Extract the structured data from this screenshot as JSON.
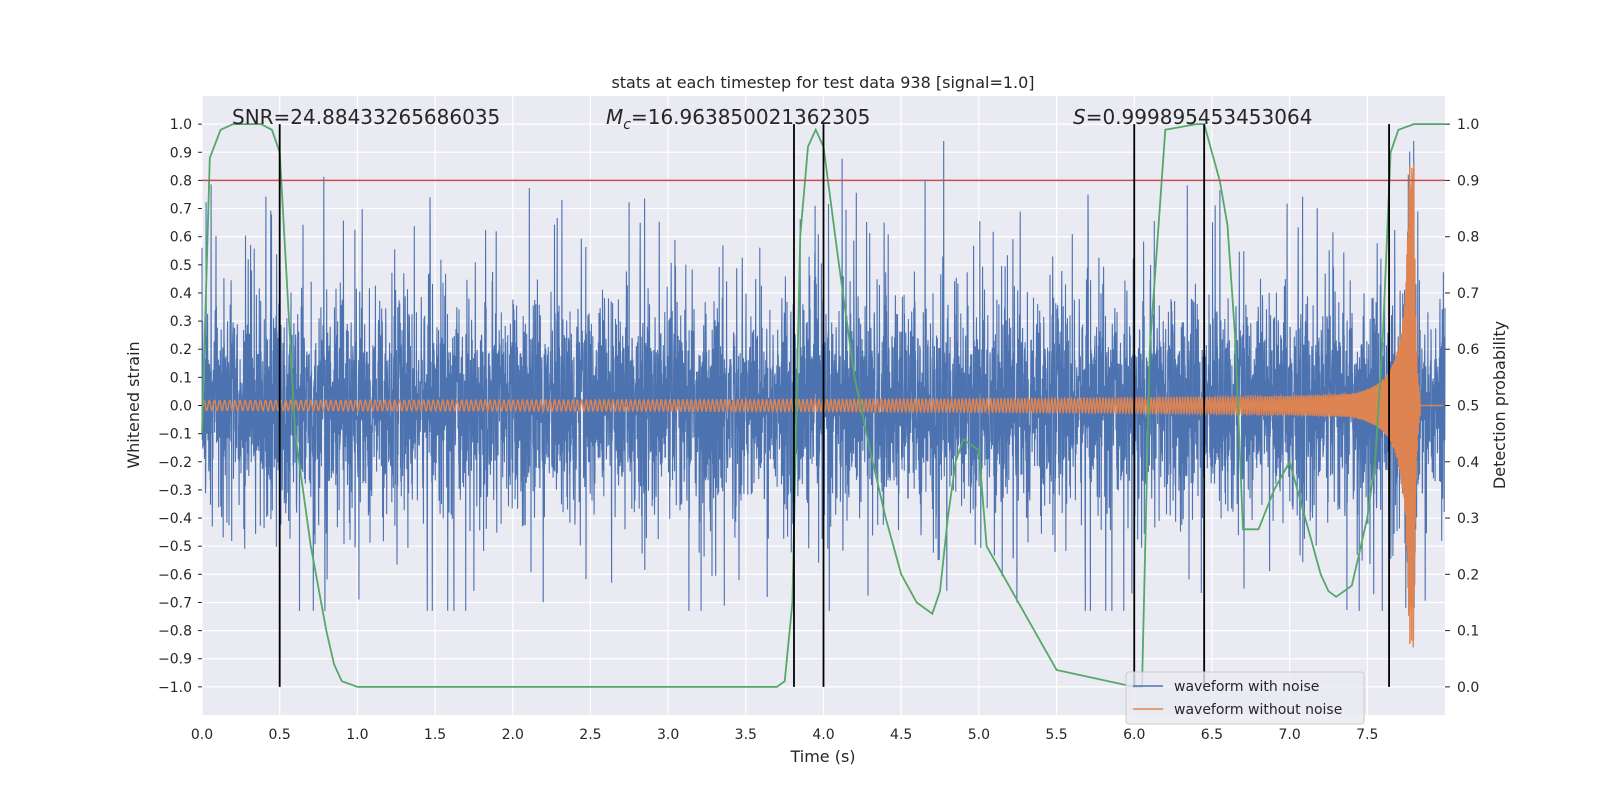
{
  "chart_data": {
    "type": "line",
    "title": "stats at each timestep for test data 938 [signal=1.0]",
    "xlabel": "Time (s)",
    "ylabel": "Whitened strain",
    "y2label": "Detection probability",
    "xlim": [
      0.0,
      8.0
    ],
    "ylim": [
      -1.1,
      1.1
    ],
    "y2lim": [
      -0.05,
      1.05
    ],
    "xticks": [
      0.0,
      0.5,
      1.0,
      1.5,
      2.0,
      2.5,
      3.0,
      3.5,
      4.0,
      4.5,
      5.0,
      5.5,
      6.0,
      6.5,
      7.0,
      7.5
    ],
    "yticks": [
      -1.0,
      -0.9,
      -0.8,
      -0.7,
      -0.6,
      -0.5,
      -0.4,
      -0.3,
      -0.2,
      -0.1,
      0.0,
      0.1,
      0.2,
      0.3,
      0.4,
      0.5,
      0.6,
      0.7,
      0.8,
      0.9,
      1.0
    ],
    "y2ticks": [
      0.0,
      0.1,
      0.2,
      0.3,
      0.4,
      0.5,
      0.6,
      0.7,
      0.8,
      0.9,
      1.0
    ],
    "grid": true,
    "legend_position": "lower-right",
    "annotations": {
      "snr": "SNR=24.88433265686035",
      "mc_symbol": "M",
      "mc_sub": "c",
      "mc_value": "=16.963850021362305",
      "s_symbol": "S",
      "s_value": "=0.999895453453064"
    },
    "threshold_y2": 0.9,
    "vertical_markers_x": [
      0.5,
      3.81,
      4.0,
      6.0,
      6.45,
      7.64
    ],
    "series": [
      {
        "name": "waveform with noise",
        "color": "#4c72b0",
        "kind": "noisy-strain",
        "typical_amplitude": 0.3,
        "peak_range": [
          -0.73,
          0.94
        ]
      },
      {
        "name": "waveform without noise",
        "color": "#dd8452",
        "kind": "chirp",
        "merger_time": 7.8,
        "peak_amplitude": 0.86
      },
      {
        "color": "#55a868",
        "axis": "y2",
        "x": [
          0.0,
          0.05,
          0.12,
          0.2,
          0.3,
          0.38,
          0.45,
          0.5,
          0.55,
          0.6,
          0.7,
          0.8,
          0.85,
          0.9,
          1.0,
          2.0,
          3.0,
          3.5,
          3.7,
          3.75,
          3.8,
          3.85,
          3.9,
          3.95,
          4.0,
          4.1,
          4.2,
          4.3,
          4.4,
          4.5,
          4.6,
          4.7,
          4.75,
          4.8,
          4.85,
          4.9,
          5.0,
          5.05,
          5.5,
          6.0,
          6.02,
          6.05,
          6.1,
          6.2,
          6.4,
          6.45,
          6.5,
          6.55,
          6.6,
          6.65,
          6.7,
          6.8,
          6.9,
          7.0,
          7.1,
          7.2,
          7.25,
          7.3,
          7.4,
          7.5,
          7.55,
          7.6,
          7.65,
          7.7,
          7.8,
          8.0
        ],
        "y": [
          0.45,
          0.94,
          0.99,
          1.0,
          1.0,
          1.0,
          0.99,
          0.95,
          0.7,
          0.45,
          0.25,
          0.1,
          0.04,
          0.01,
          0.0,
          0.0,
          0.0,
          0.0,
          0.0,
          0.01,
          0.15,
          0.8,
          0.96,
          0.99,
          0.96,
          0.75,
          0.55,
          0.42,
          0.3,
          0.2,
          0.15,
          0.13,
          0.17,
          0.3,
          0.4,
          0.44,
          0.42,
          0.25,
          0.03,
          0.0,
          0.0,
          0.0,
          0.6,
          0.99,
          1.0,
          1.0,
          0.95,
          0.9,
          0.82,
          0.62,
          0.28,
          0.28,
          0.35,
          0.4,
          0.3,
          0.2,
          0.17,
          0.16,
          0.18,
          0.3,
          0.4,
          0.62,
          0.95,
          0.99,
          1.0,
          1.0
        ]
      }
    ]
  }
}
